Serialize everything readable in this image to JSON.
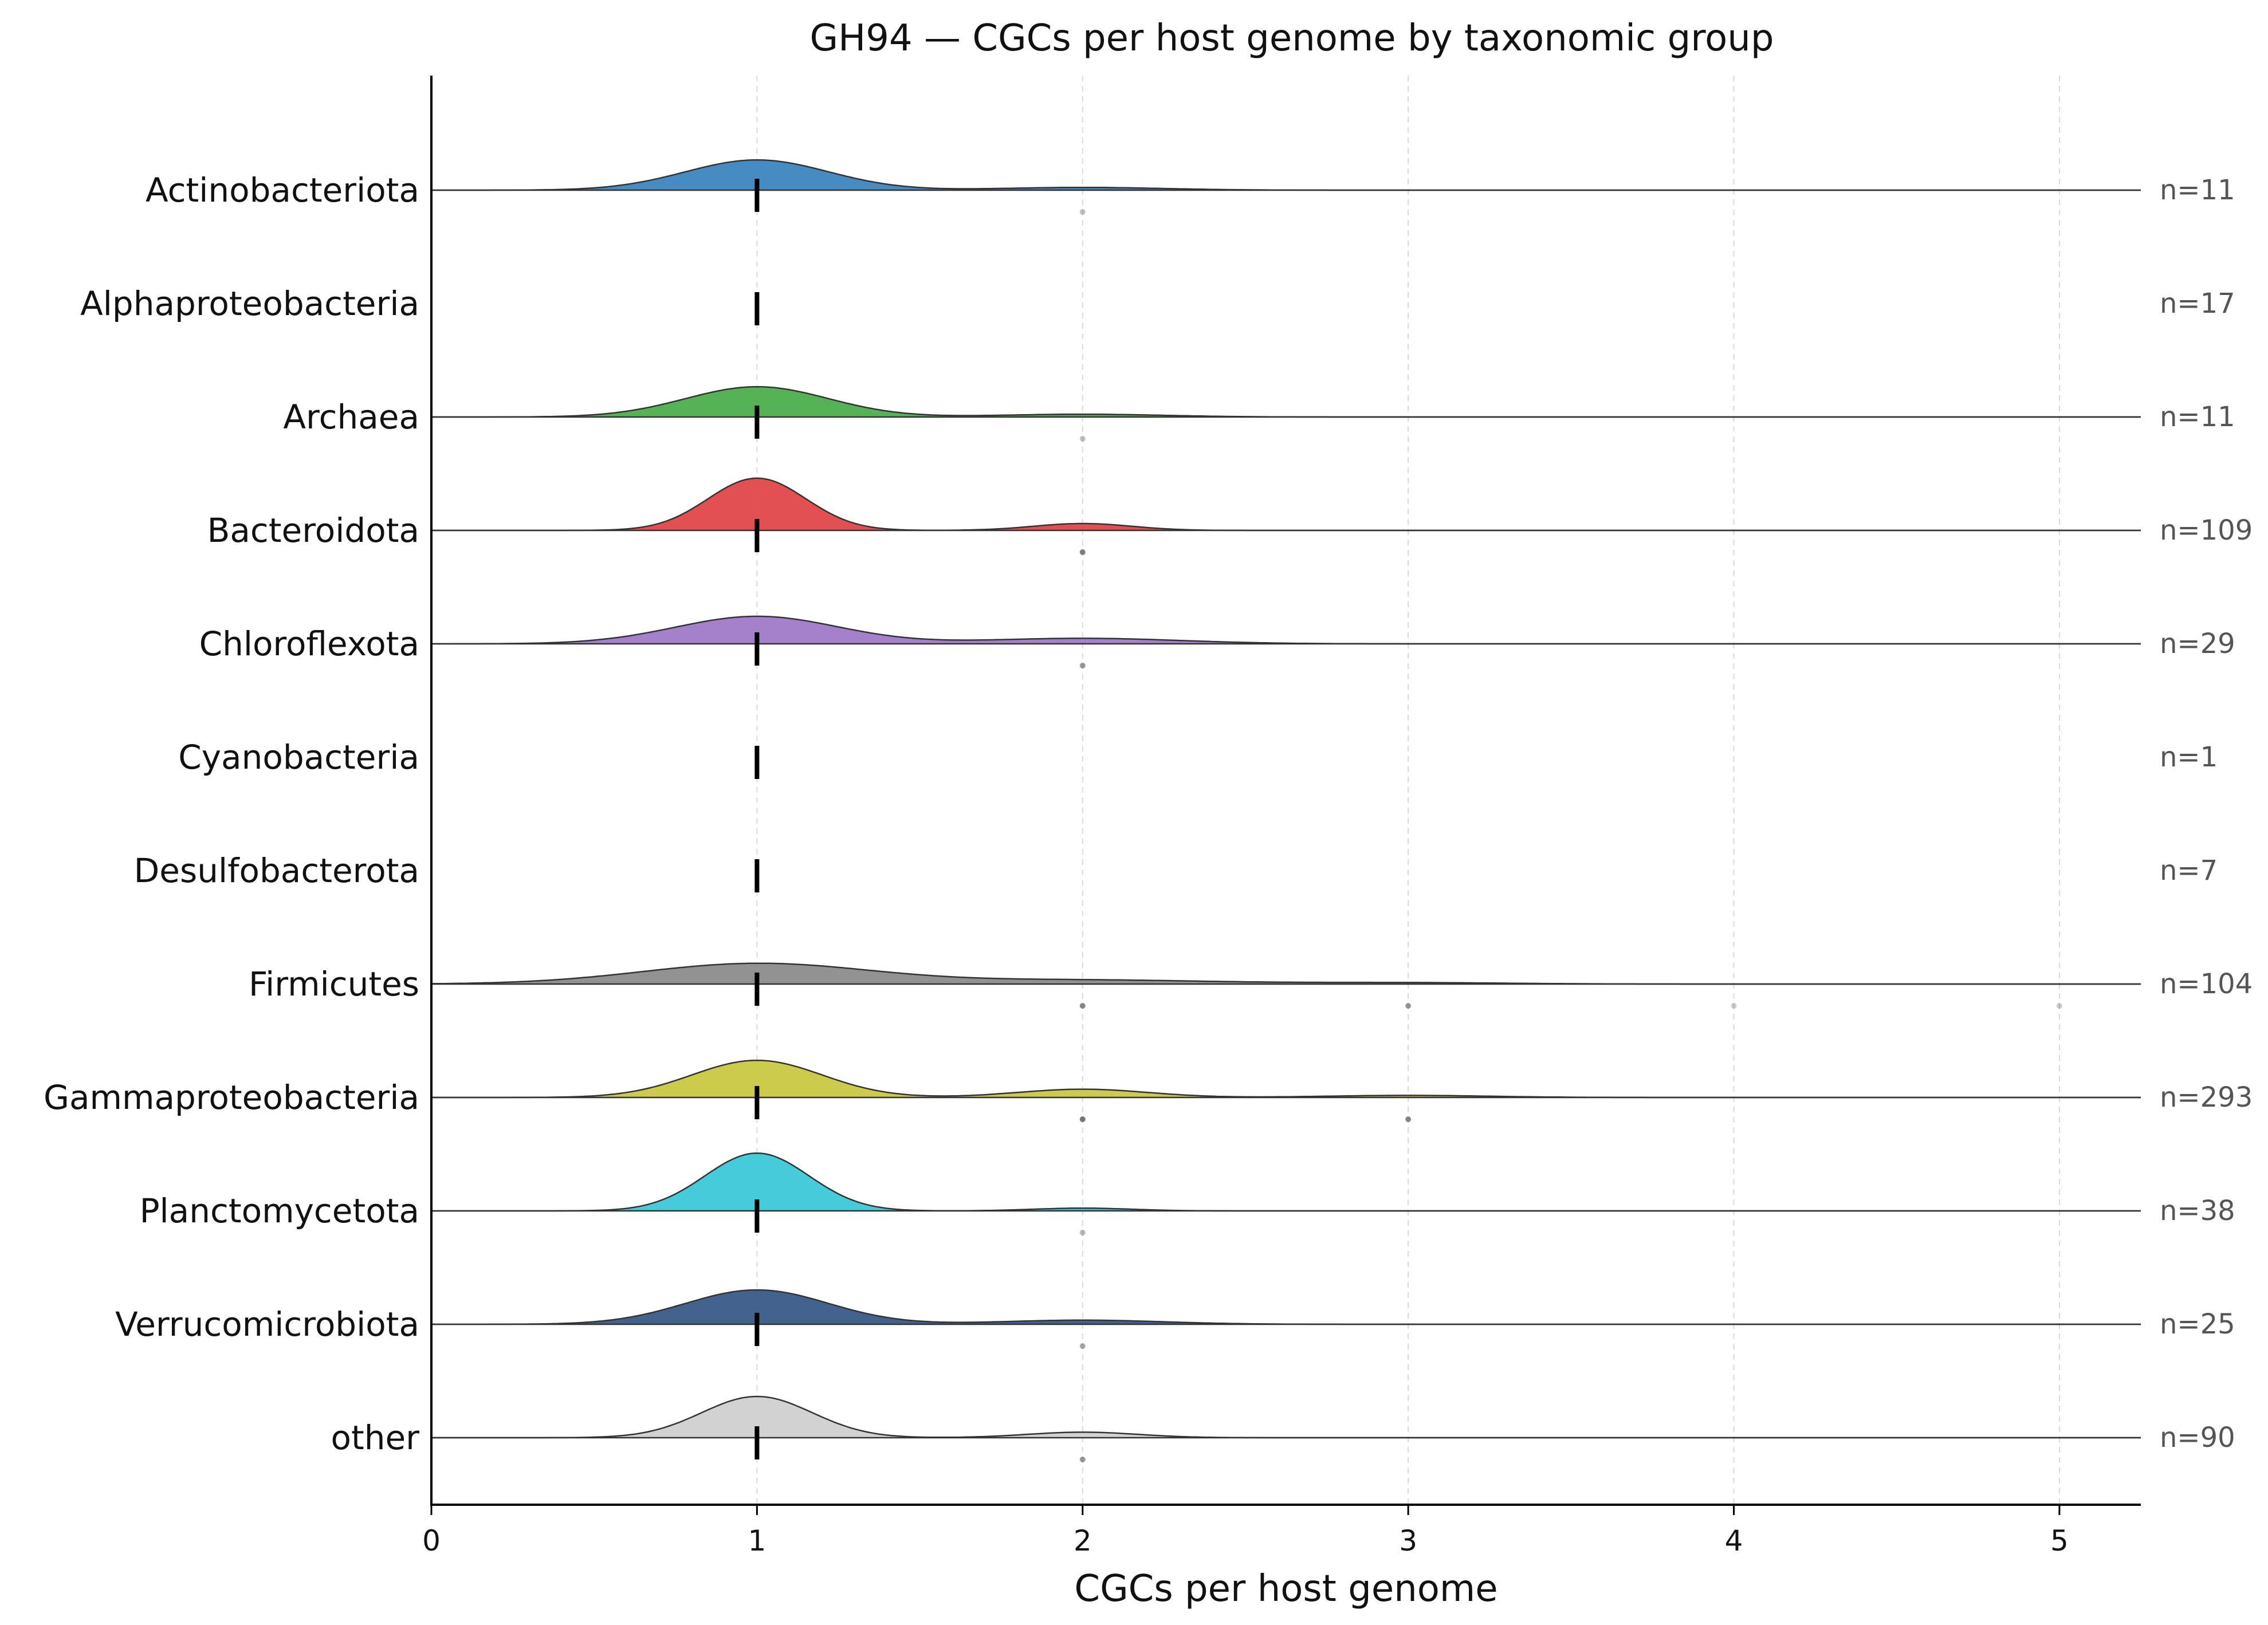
{
  "chart_data": {
    "type": "ridgeline",
    "title": "GH94 — CGCs per host genome by taxonomic group",
    "xlabel": "CGCs per host genome",
    "ylabel": "",
    "xlim": [
      0,
      5.25
    ],
    "xticks": [
      0,
      1,
      2,
      3,
      4,
      5
    ],
    "grid": "vertical dashed at integer ticks",
    "median_marker": "vertical black tick at x=1 for every group",
    "series": [
      {
        "name": "Actinobacteriota",
        "n": "n=11",
        "color": "#3d85c0",
        "median": 1,
        "density": [
          {
            "x": 1,
            "h": 0.22,
            "w": 0.22
          },
          {
            "x": 2,
            "h": 0.02,
            "w": 0.25
          }
        ],
        "points": [
          {
            "x": 2,
            "o": 0.35
          }
        ]
      },
      {
        "name": "Alphaproteobacteria",
        "n": "n=17",
        "color": "#ff8c1a",
        "median": 1,
        "density": [],
        "points": []
      },
      {
        "name": "Archaea",
        "n": "n=11",
        "color": "#4caf4c",
        "median": 1,
        "density": [
          {
            "x": 1,
            "h": 0.22,
            "w": 0.22
          },
          {
            "x": 2,
            "h": 0.02,
            "w": 0.25
          }
        ],
        "points": [
          {
            "x": 2,
            "o": 0.35
          }
        ]
      },
      {
        "name": "Bacteroidota",
        "n": "n=109",
        "color": "#e0474a",
        "median": 1,
        "density": [
          {
            "x": 1,
            "h": 0.38,
            "w": 0.15
          },
          {
            "x": 2,
            "h": 0.05,
            "w": 0.15
          }
        ],
        "points": [
          {
            "x": 2,
            "o": 0.75
          }
        ]
      },
      {
        "name": "Chloroflexota",
        "n": "n=29",
        "color": "#a07ac8",
        "median": 1,
        "density": [
          {
            "x": 1,
            "h": 0.2,
            "w": 0.25
          },
          {
            "x": 2,
            "h": 0.04,
            "w": 0.3
          }
        ],
        "points": [
          {
            "x": 2,
            "o": 0.6
          }
        ]
      },
      {
        "name": "Cyanobacteria",
        "n": "n=1",
        "color": "#8c564b",
        "median": 1,
        "density": [],
        "points": []
      },
      {
        "name": "Desulfobacterota",
        "n": "n=7",
        "color": "#e377c2",
        "median": 1,
        "density": [],
        "points": []
      },
      {
        "name": "Firmicutes",
        "n": "n=104",
        "color": "#8c8c8c",
        "median": 1,
        "density": [
          {
            "x": 1,
            "h": 0.15,
            "w": 0.35
          },
          {
            "x": 2,
            "h": 0.03,
            "w": 0.4
          },
          {
            "x": 3,
            "h": 0.01,
            "w": 0.3
          }
        ],
        "points": [
          {
            "x": 2,
            "o": 0.7
          },
          {
            "x": 3,
            "o": 0.6
          },
          {
            "x": 4,
            "o": 0.3
          },
          {
            "x": 5,
            "o": 0.3
          }
        ]
      },
      {
        "name": "Gammaproteobacteria",
        "n": "n=293",
        "color": "#c9c842",
        "median": 1,
        "density": [
          {
            "x": 1,
            "h": 0.27,
            "w": 0.2
          },
          {
            "x": 2,
            "h": 0.06,
            "w": 0.2
          },
          {
            "x": 3,
            "h": 0.015,
            "w": 0.25
          }
        ],
        "points": [
          {
            "x": 2,
            "o": 0.8
          },
          {
            "x": 3,
            "o": 0.7
          }
        ]
      },
      {
        "name": "Planctomycetota",
        "n": "n=38",
        "color": "#3cc8d8",
        "median": 1,
        "density": [
          {
            "x": 1,
            "h": 0.42,
            "w": 0.16
          },
          {
            "x": 2,
            "h": 0.02,
            "w": 0.15
          }
        ],
        "points": [
          {
            "x": 2,
            "o": 0.4
          }
        ]
      },
      {
        "name": "Verrucomicrobiota",
        "n": "n=25",
        "color": "#3a5a88",
        "median": 1,
        "density": [
          {
            "x": 1,
            "h": 0.25,
            "w": 0.22
          },
          {
            "x": 2,
            "h": 0.03,
            "w": 0.25
          }
        ],
        "points": [
          {
            "x": 2,
            "o": 0.5
          }
        ]
      },
      {
        "name": "other",
        "n": "n=90",
        "color": "#d0d0d0",
        "median": 1,
        "density": [
          {
            "x": 1,
            "h": 0.3,
            "w": 0.17
          },
          {
            "x": 2,
            "h": 0.04,
            "w": 0.17
          }
        ],
        "points": [
          {
            "x": 2,
            "o": 0.6
          }
        ]
      }
    ]
  }
}
